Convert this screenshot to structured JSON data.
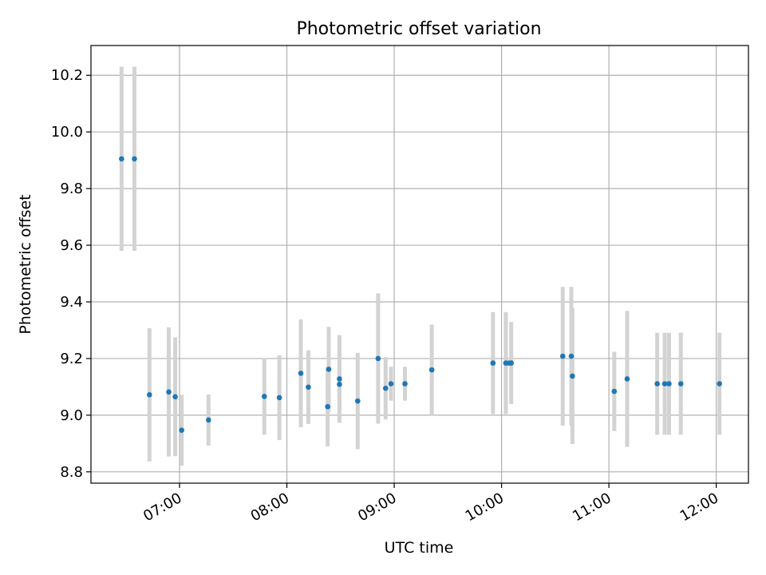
{
  "chart_data": {
    "type": "scatter",
    "title": "Photometric offset variation",
    "xlabel": "UTC time",
    "ylabel": "Photometric offset",
    "x_unit": "hours UTC",
    "xlim": [
      6.175,
      12.3
    ],
    "ylim": [
      8.76,
      10.305
    ],
    "x_ticks": [
      {
        "value": 7,
        "label": "07:00"
      },
      {
        "value": 8,
        "label": "08:00"
      },
      {
        "value": 9,
        "label": "09:00"
      },
      {
        "value": 10,
        "label": "10:00"
      },
      {
        "value": 11,
        "label": "11:00"
      },
      {
        "value": 12,
        "label": "12:00"
      }
    ],
    "y_ticks": [
      {
        "value": 8.8,
        "label": "8.8"
      },
      {
        "value": 9.0,
        "label": "9.0"
      },
      {
        "value": 9.2,
        "label": "9.2"
      },
      {
        "value": 9.4,
        "label": "9.4"
      },
      {
        "value": 9.6,
        "label": "9.6"
      },
      {
        "value": 9.8,
        "label": "9.8"
      },
      {
        "value": 10.0,
        "label": "10.0"
      },
      {
        "value": 10.2,
        "label": "10.2"
      }
    ],
    "grid": true,
    "colors": {
      "point": "#1f77b4",
      "errorbar": "#d3d3d3",
      "grid": "#b0b0b0"
    },
    "points": [
      {
        "x": 6.46,
        "y": 9.905,
        "yerr": 0.325
      },
      {
        "x": 6.58,
        "y": 9.905,
        "yerr": 0.325
      },
      {
        "x": 6.72,
        "y": 9.072,
        "yerr": 0.235
      },
      {
        "x": 6.9,
        "y": 9.082,
        "yerr": 0.228
      },
      {
        "x": 6.96,
        "y": 9.065,
        "yerr": 0.21
      },
      {
        "x": 7.02,
        "y": 8.947,
        "yerr": 0.125
      },
      {
        "x": 7.27,
        "y": 8.983,
        "yerr": 0.09
      },
      {
        "x": 7.79,
        "y": 9.066,
        "yerr": 0.135
      },
      {
        "x": 7.93,
        "y": 9.062,
        "yerr": 0.15
      },
      {
        "x": 8.13,
        "y": 9.148,
        "yerr": 0.19
      },
      {
        "x": 8.2,
        "y": 9.099,
        "yerr": 0.13
      },
      {
        "x": 8.38,
        "y": 9.03,
        "yerr": 0.14
      },
      {
        "x": 8.39,
        "y": 9.162,
        "yerr": 0.15
      },
      {
        "x": 8.49,
        "y": 9.128,
        "yerr": 0.155
      },
      {
        "x": 8.49,
        "y": 9.109,
        "yerr": 0.08
      },
      {
        "x": 8.66,
        "y": 9.05,
        "yerr": 0.17
      },
      {
        "x": 8.85,
        "y": 9.2,
        "yerr": 0.23
      },
      {
        "x": 8.92,
        "y": 9.095,
        "yerr": 0.11
      },
      {
        "x": 8.97,
        "y": 9.111,
        "yerr": 0.06
      },
      {
        "x": 9.1,
        "y": 9.111,
        "yerr": 0.06
      },
      {
        "x": 9.35,
        "y": 9.16,
        "yerr": 0.16
      },
      {
        "x": 9.92,
        "y": 9.184,
        "yerr": 0.18
      },
      {
        "x": 10.04,
        "y": 9.184,
        "yerr": 0.18
      },
      {
        "x": 10.07,
        "y": 9.184,
        "yerr": 0.0
      },
      {
        "x": 10.09,
        "y": 9.184,
        "yerr": 0.145
      },
      {
        "x": 10.57,
        "y": 9.208,
        "yerr": 0.245
      },
      {
        "x": 10.65,
        "y": 9.208,
        "yerr": 0.245
      },
      {
        "x": 10.66,
        "y": 9.138,
        "yerr": 0.24
      },
      {
        "x": 11.05,
        "y": 9.084,
        "yerr": 0.14
      },
      {
        "x": 11.17,
        "y": 9.128,
        "yerr": 0.24
      },
      {
        "x": 11.45,
        "y": 9.111,
        "yerr": 0.18
      },
      {
        "x": 11.52,
        "y": 9.111,
        "yerr": 0.18
      },
      {
        "x": 11.56,
        "y": 9.111,
        "yerr": 0.18
      },
      {
        "x": 11.67,
        "y": 9.111,
        "yerr": 0.18
      },
      {
        "x": 12.03,
        "y": 9.111,
        "yerr": 0.18
      }
    ]
  }
}
